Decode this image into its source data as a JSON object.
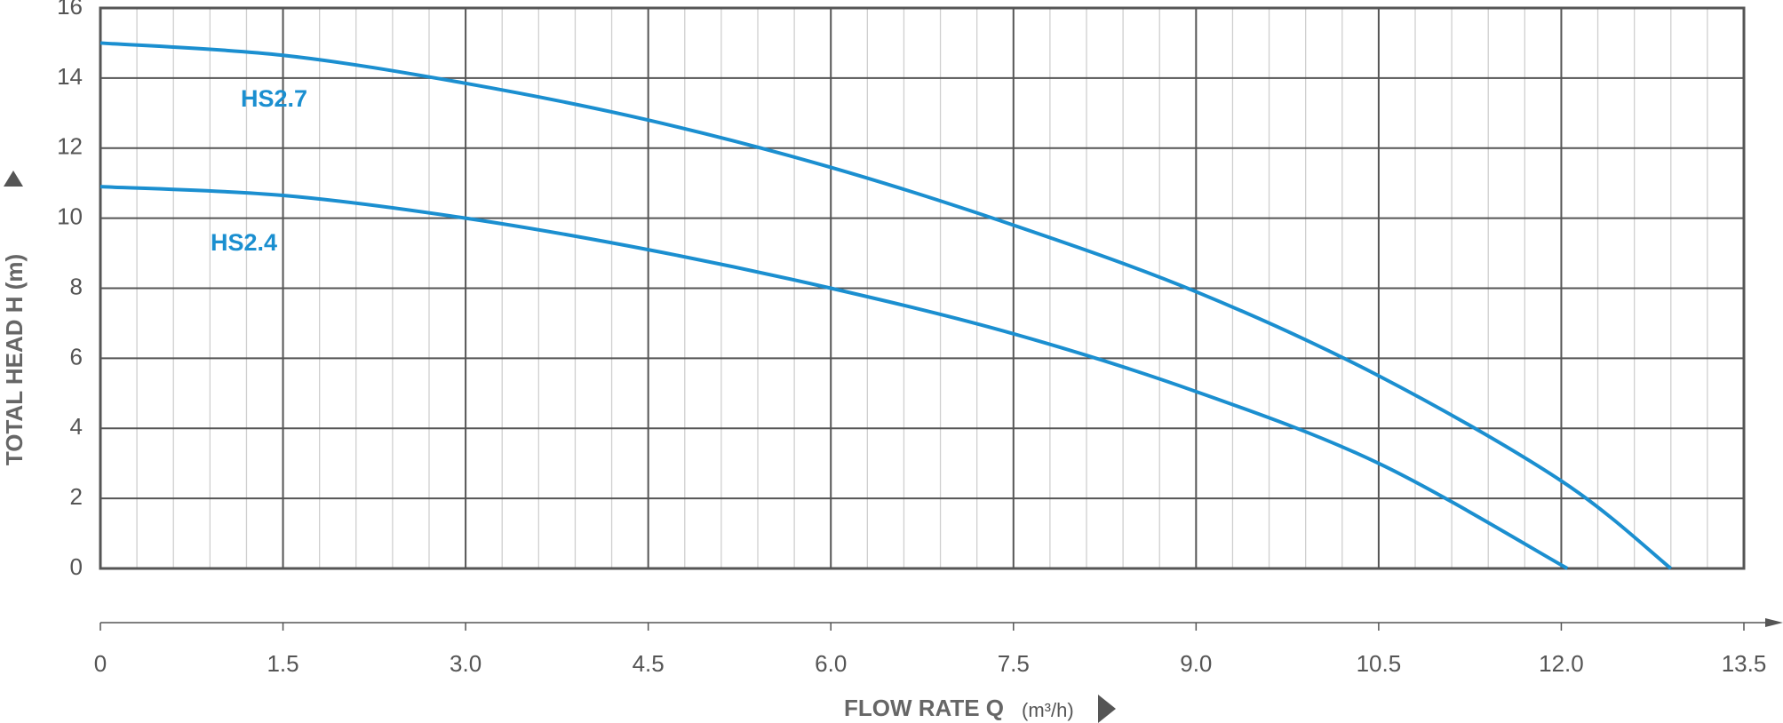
{
  "chart_data": {
    "type": "line",
    "y_label": "TOTAL HEAD H (m)",
    "x_label": "FLOW RATE Q",
    "x_unit": "(m³/h)",
    "xlim": [
      0,
      13.5
    ],
    "ylim": [
      0,
      16
    ],
    "xticks": [
      0,
      1.5,
      {
        "value": 3,
        "label": "3.0"
      },
      4.5,
      {
        "value": 6,
        "label": "6.0"
      },
      7.5,
      {
        "value": 9,
        "label": "9.0"
      },
      10.5,
      {
        "value": 12,
        "label": "12.0"
      },
      13.5
    ],
    "yticks": [
      0,
      2,
      4,
      6,
      8,
      10,
      12,
      14,
      16
    ],
    "grid": true,
    "minor_grid_step": 0.3,
    "series": [
      {
        "name": "HS2.7",
        "color": "#1b8fd0",
        "x": [
          0,
          1.5,
          3,
          4.5,
          6,
          7.5,
          9,
          10.5,
          12,
          12.9
        ],
        "values": [
          15,
          14.65,
          13.85,
          12.8,
          11.45,
          9.8,
          7.9,
          5.5,
          2.5,
          0
        ]
      },
      {
        "name": "HS2.4",
        "color": "#1b8fd0",
        "x": [
          0,
          1.5,
          3,
          4.5,
          6,
          7.5,
          9,
          10.5,
          12.05
        ],
        "values": [
          10.9,
          10.65,
          10.0,
          9.1,
          8.0,
          6.7,
          5.05,
          3.0,
          0
        ]
      }
    ]
  }
}
